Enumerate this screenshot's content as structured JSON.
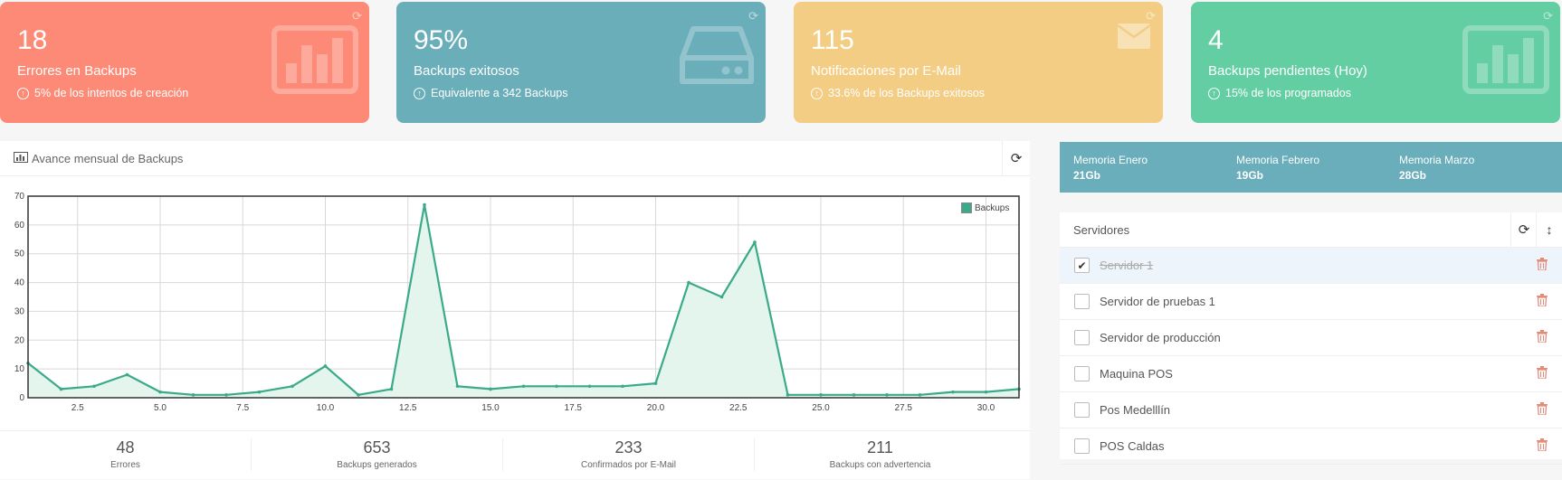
{
  "stats": [
    {
      "value": "18",
      "label": "Errores en Backups",
      "sub": "5% de los intentos de creación",
      "color": "#fd8a76",
      "icon": "bar-chart-icon"
    },
    {
      "value": "95%",
      "label": "Backups exitosos",
      "sub": "Equivalente a 342 Backups",
      "color": "#6aaeba",
      "icon": "hard-drive-icon"
    },
    {
      "value": "115",
      "label": "Notificaciones por E-Mail",
      "sub": "33.6% de los Backups exitosos",
      "color": "#f3cd84",
      "icon": "envelope-icon"
    },
    {
      "value": "4",
      "label": "Backups pendientes (Hoy)",
      "sub": "15% de los programados",
      "color": "#64cea3",
      "icon": "bar-chart-icon"
    }
  ],
  "chart_panel": {
    "title": "Avance mensual de Backups"
  },
  "chart_data": {
    "type": "line",
    "title": "",
    "xlabel": "",
    "ylabel": "",
    "xlim": [
      1,
      31
    ],
    "ylim": [
      0,
      70
    ],
    "xticks": [
      2.5,
      5.0,
      7.5,
      10.0,
      12.5,
      15.0,
      17.5,
      20.0,
      22.5,
      25.0,
      27.5,
      30.0
    ],
    "xtick_labels": [
      "2.5",
      "5.0",
      "7.5",
      "10.0",
      "12.5",
      "15.0",
      "17.5",
      "20.0",
      "22.5",
      "25.0",
      "27.5",
      "30.0"
    ],
    "yticks": [
      0,
      10,
      20,
      30,
      40,
      50,
      60,
      70
    ],
    "grid": true,
    "legend": "top-right",
    "series": [
      {
        "name": "Backups",
        "color": "#3aaa8a",
        "x": [
          1,
          2,
          3,
          4,
          5,
          6,
          7,
          8,
          9,
          10,
          11,
          12,
          13,
          14,
          15,
          16,
          17,
          18,
          19,
          20,
          21,
          22,
          23,
          24,
          25,
          26,
          27,
          28,
          29,
          30,
          31
        ],
        "values": [
          12,
          3,
          4,
          8,
          2,
          1,
          1,
          2,
          4,
          11,
          1,
          3,
          67,
          4,
          3,
          4,
          4,
          4,
          4,
          5,
          40,
          35,
          54,
          1,
          1,
          1,
          1,
          1,
          2,
          2,
          3
        ]
      }
    ]
  },
  "summary": [
    {
      "value": "48",
      "label": "Errores"
    },
    {
      "value": "653",
      "label": "Backups generados"
    },
    {
      "value": "233",
      "label": "Confirmados por E-Mail"
    },
    {
      "value": "211",
      "label": "Backups con advertencia"
    }
  ],
  "memory": [
    {
      "label": "Memoria Enero",
      "value": "21Gb"
    },
    {
      "label": "Memoria Febrero",
      "value": "19Gb"
    },
    {
      "label": "Memoria Marzo",
      "value": "28Gb"
    }
  ],
  "servers": {
    "title": "Servidores",
    "items": [
      {
        "name": "Servidor 1",
        "checked": true
      },
      {
        "name": "Servidor de pruebas 1",
        "checked": false
      },
      {
        "name": "Servidor de producción",
        "checked": false
      },
      {
        "name": "Maquina POS",
        "checked": false
      },
      {
        "name": "Pos Medelllín",
        "checked": false
      },
      {
        "name": "POS Caldas",
        "checked": false
      }
    ]
  }
}
